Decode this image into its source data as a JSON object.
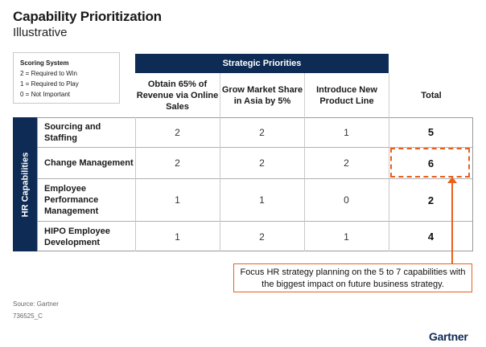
{
  "header": {
    "title": "Capability Prioritization",
    "subtitle": "Illustrative"
  },
  "legend": {
    "heading": "Scoring System",
    "items": [
      "2 = Required to Win",
      "1 = Required to Play",
      "0 = Not Important"
    ]
  },
  "matrix": {
    "group_header": "Strategic Priorities",
    "row_group_label": "HR Capabilities",
    "columns": [
      "Obtain 65% of Revenue via Online Sales",
      "Grow Market Share in Asia by 5%",
      "Introduce New Product Line",
      "Total"
    ],
    "rows": [
      {
        "label": "Sourcing and Staffing",
        "values": [
          "2",
          "2",
          "1"
        ],
        "total": "5"
      },
      {
        "label": "Change Management",
        "values": [
          "2",
          "2",
          "2"
        ],
        "total": "6"
      },
      {
        "label": "Employee Performance Management",
        "values": [
          "1",
          "1",
          "0"
        ],
        "total": "2"
      },
      {
        "label": "HIPO Employee Development",
        "values": [
          "1",
          "2",
          "1"
        ],
        "total": "4"
      }
    ]
  },
  "callout": {
    "text": "Focus HR strategy planning on the 5 to 7 capabilities with the biggest impact on future business strategy."
  },
  "footer": {
    "source": "Source: Gartner",
    "doc_id": "736525_C",
    "brand": "Gartner"
  },
  "colors": {
    "navy": "#0d2b54",
    "accent_orange": "#e8601c",
    "row_label_bg": "#ffffff"
  }
}
